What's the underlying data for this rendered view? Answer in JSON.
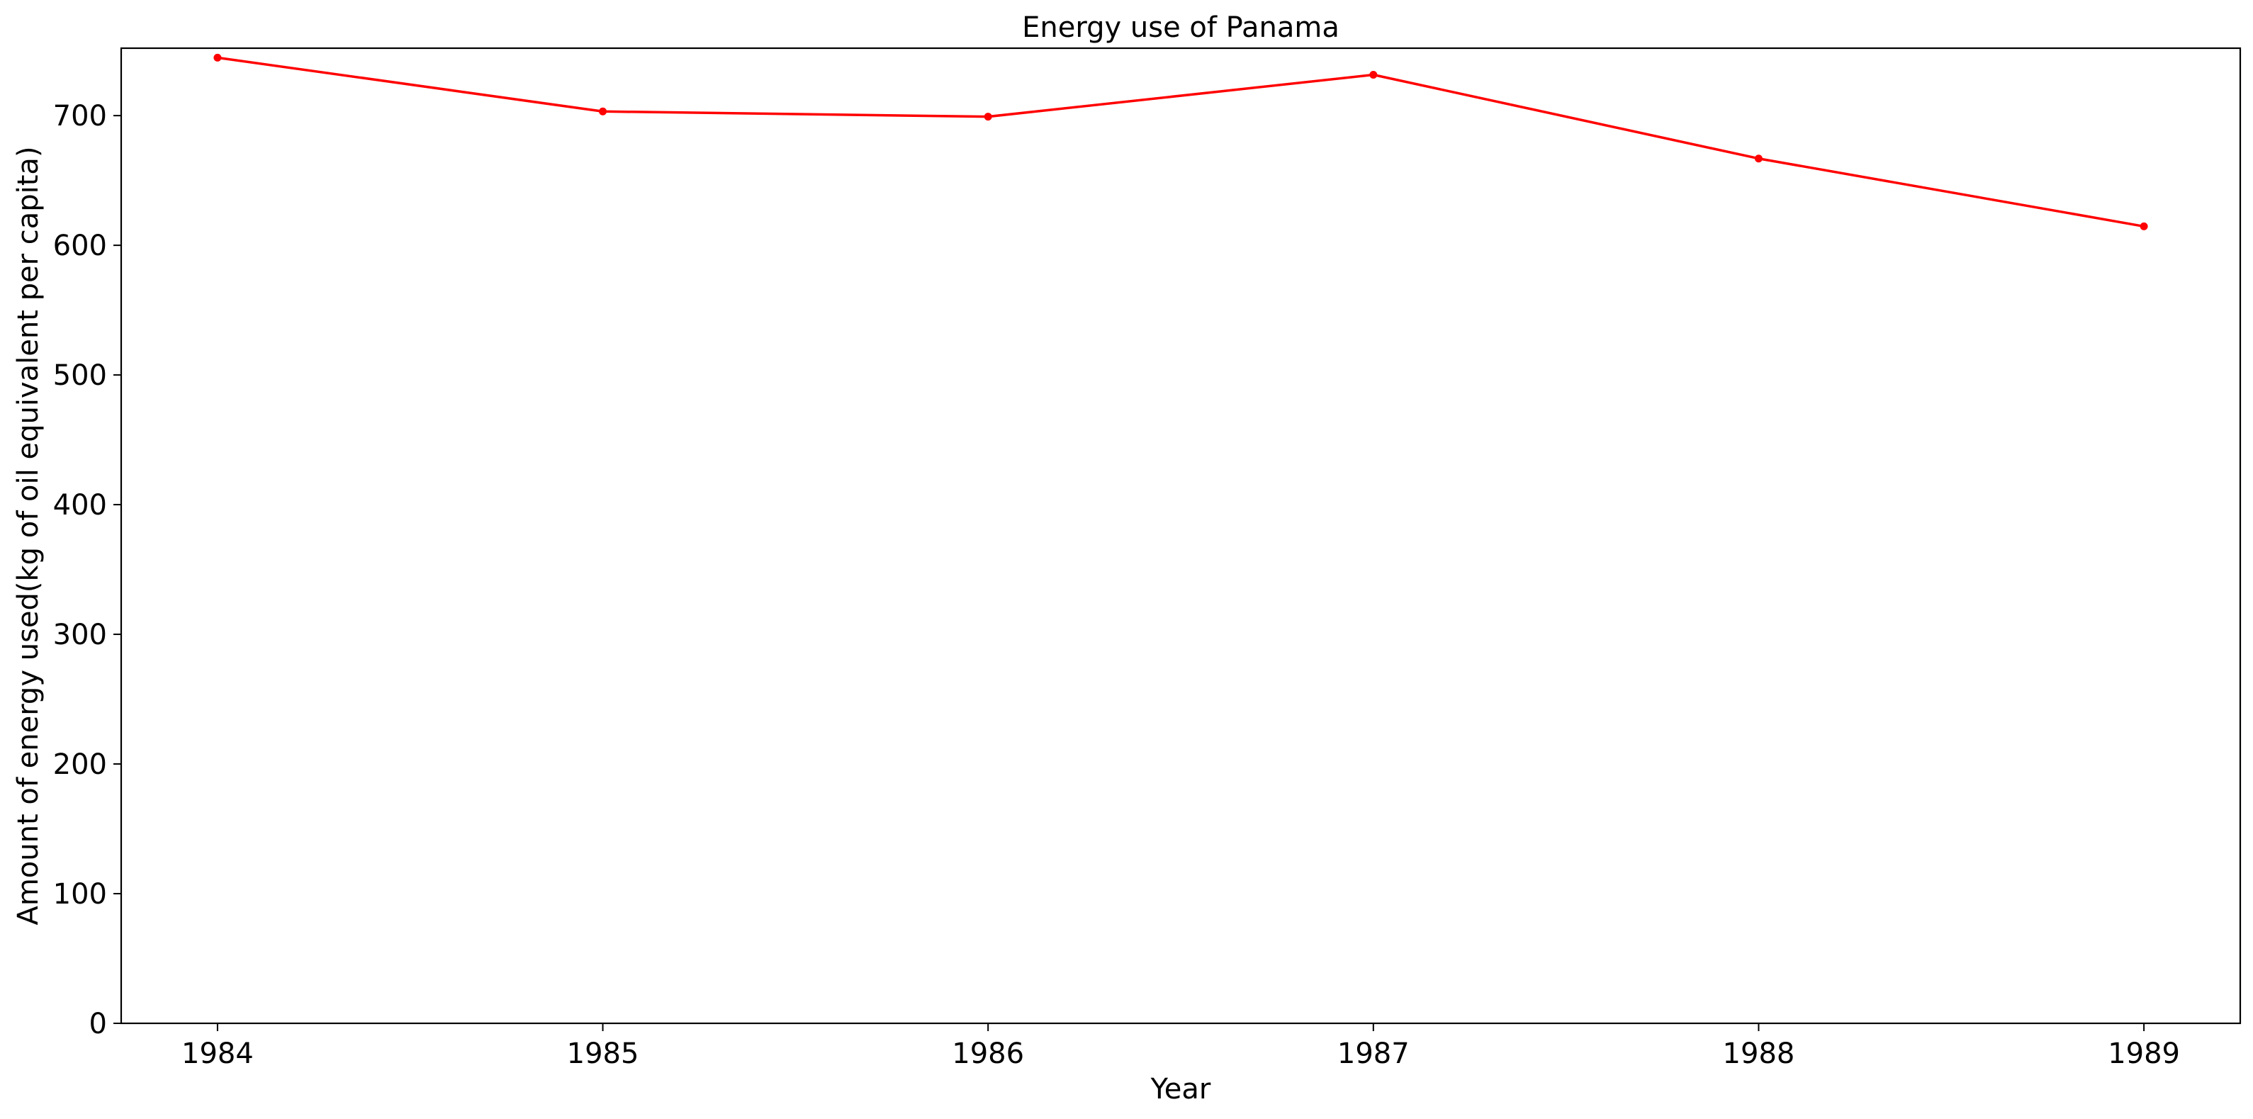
{
  "chart_data": {
    "type": "line",
    "title": "Energy use of Panama",
    "xlabel": "Year",
    "ylabel": "Amount of energy used(kg of oil equivalent per capita)",
    "x": [
      1984,
      1985,
      1986,
      1987,
      1988,
      1989
    ],
    "series": [
      {
        "values": [
          744.7,
          703.2,
          699.2,
          731.5,
          666.9,
          614.6
        ],
        "color": "#ff0000",
        "marker": "dot"
      }
    ],
    "xticks": [
      "1984",
      "1985",
      "1986",
      "1987",
      "1988",
      "1989"
    ],
    "yticks": [
      "0",
      "100",
      "200",
      "300",
      "400",
      "500",
      "600",
      "700"
    ],
    "xlim": [
      1983.75,
      1989.25
    ],
    "ylim": [
      0,
      752
    ],
    "grid": false
  }
}
